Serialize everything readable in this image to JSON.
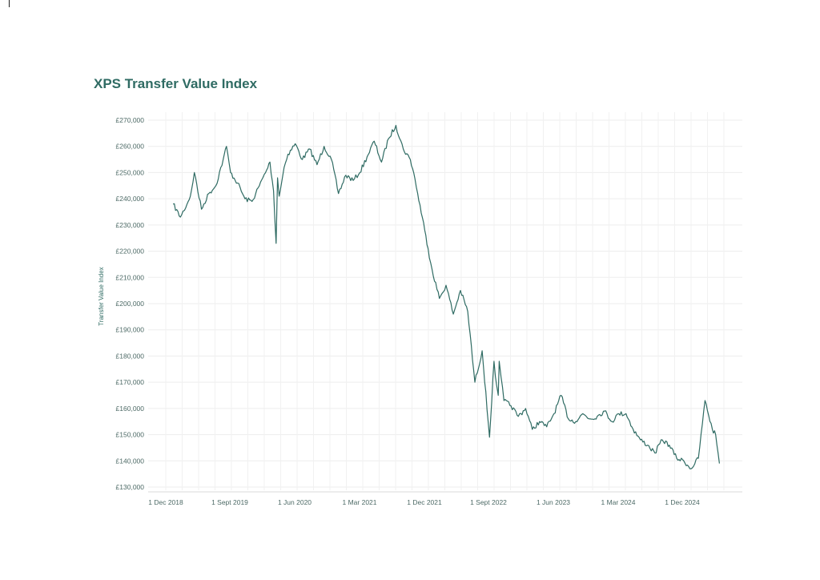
{
  "chart_data": {
    "type": "line",
    "title": "XPS Transfer Value Index",
    "xlabel": "",
    "ylabel": "Transfer Value Index",
    "ylim": [
      128000,
      272000
    ],
    "y_ticks": [
      "£130,000",
      "£140,000",
      "£150,000",
      "£160,000",
      "£170,000",
      "£180,000",
      "£190,000",
      "£200,000",
      "£210,000",
      "£220,000",
      "£230,000",
      "£240,000",
      "£250,000",
      "£260,000",
      "£270,000"
    ],
    "x_ticks": [
      "1 Dec 2018",
      "1 Sept 2019",
      "1 Jun 2020",
      "1 Mar 2021",
      "1 Dec 2021",
      "1 Sept 2022",
      "1 Jun 2023",
      "1 Mar 2024",
      "1 Dec 2024"
    ],
    "grid": true,
    "series": [
      {
        "color": "#2f6b63",
        "x": [
          "2019-01-01",
          "2019-02-01",
          "2019-03-01",
          "2019-03-15",
          "2019-04-01",
          "2019-05-01",
          "2019-06-01",
          "2019-07-01",
          "2019-08-01",
          "2019-08-15",
          "2019-09-01",
          "2019-10-01",
          "2019-11-01",
          "2019-12-01",
          "2020-01-01",
          "2020-02-01",
          "2020-02-15",
          "2020-03-01",
          "2020-03-12",
          "2020-03-18",
          "2020-03-25",
          "2020-04-15",
          "2020-05-01",
          "2020-06-01",
          "2020-07-01",
          "2020-08-01",
          "2020-09-01",
          "2020-10-01",
          "2020-11-01",
          "2020-12-01",
          "2021-01-01",
          "2021-02-01",
          "2021-03-01",
          "2021-04-01",
          "2021-05-01",
          "2021-06-01",
          "2021-07-01",
          "2021-08-01",
          "2021-09-01",
          "2021-10-01",
          "2021-10-15",
          "2021-11-01",
          "2021-12-01",
          "2021-12-15",
          "2022-01-01",
          "2022-02-01",
          "2022-03-01",
          "2022-04-01",
          "2022-05-01",
          "2022-06-01",
          "2022-07-01",
          "2022-08-01",
          "2022-09-01",
          "2022-09-20",
          "2022-09-26",
          "2022-10-01",
          "2022-10-08",
          "2022-10-12",
          "2022-10-20",
          "2022-11-01",
          "2022-12-01",
          "2023-01-01",
          "2023-02-01",
          "2023-03-01",
          "2023-04-01",
          "2023-05-01",
          "2023-06-01",
          "2023-07-01",
          "2023-08-01",
          "2023-09-01",
          "2023-10-01",
          "2023-11-01",
          "2023-12-01",
          "2024-01-01",
          "2024-02-01",
          "2024-03-01",
          "2024-04-01",
          "2024-05-01",
          "2024-06-01",
          "2024-07-01",
          "2024-08-01",
          "2024-09-01",
          "2024-10-01",
          "2024-11-01",
          "2024-12-01",
          "2025-01-01",
          "2025-02-01",
          "2025-03-01",
          "2025-04-01",
          "2025-04-15",
          "2025-05-01"
        ],
        "values": [
          238000,
          233000,
          238000,
          241000,
          250000,
          236000,
          242000,
          245000,
          255000,
          260000,
          250000,
          246000,
          240000,
          239000,
          245000,
          251000,
          254000,
          243000,
          223000,
          248000,
          241000,
          252000,
          257000,
          261000,
          255000,
          259000,
          253000,
          260000,
          255000,
          242000,
          249000,
          247000,
          250000,
          256000,
          262000,
          254000,
          263000,
          268000,
          259000,
          255000,
          250000,
          242000,
          228000,
          221000,
          213000,
          202000,
          207000,
          196000,
          205000,
          197000,
          170000,
          182000,
          149000,
          178000,
          172000,
          169000,
          165000,
          178000,
          172000,
          163000,
          161000,
          157000,
          160000,
          152000,
          155000,
          153000,
          158000,
          165000,
          156000,
          155000,
          158000,
          156000,
          157000,
          159000,
          155000,
          158000,
          158000,
          152000,
          148000,
          146000,
          143000,
          148000,
          146000,
          141000,
          140000,
          137000,
          141000,
          163000,
          152000,
          150000,
          139000
        ]
      }
    ]
  }
}
